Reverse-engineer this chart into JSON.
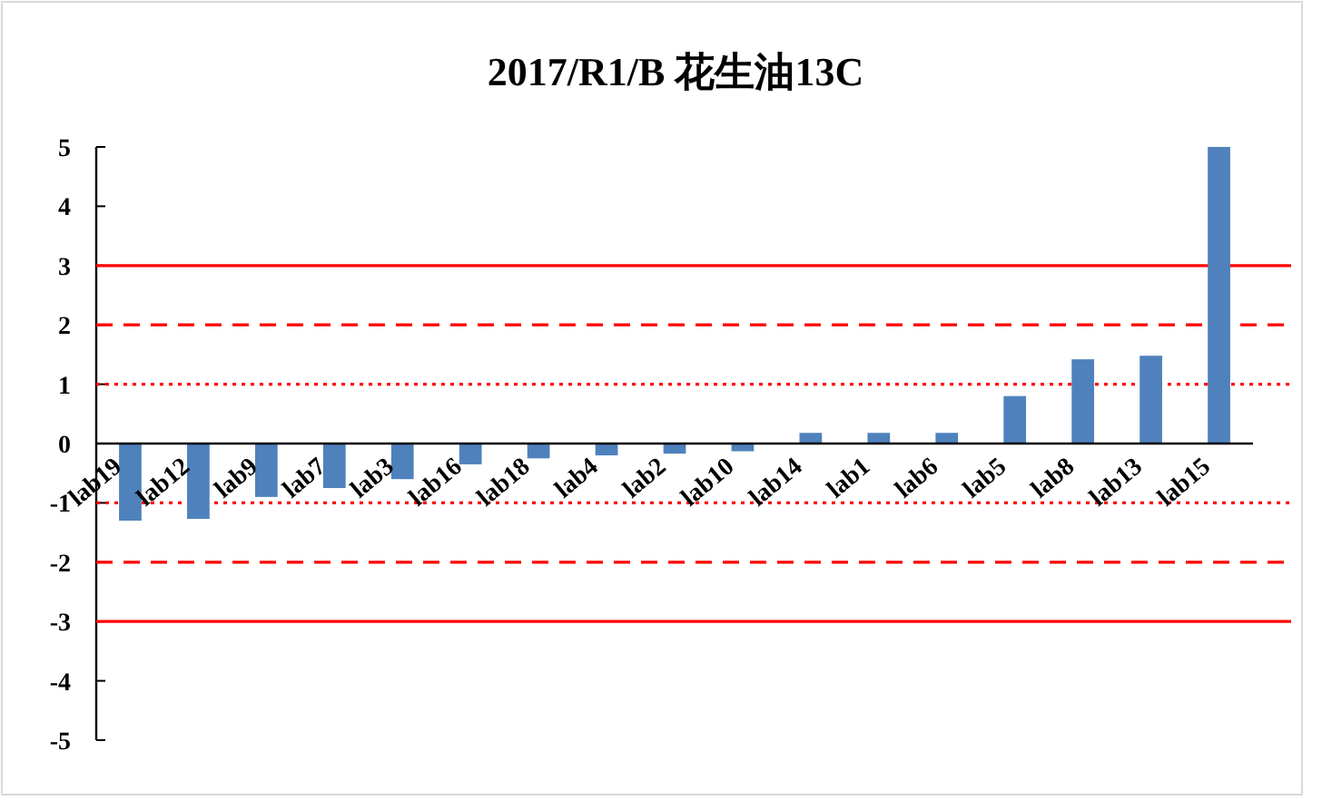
{
  "chart_data": {
    "type": "bar",
    "title": "2017/R1/B  花生油13C",
    "categories": [
      "lab19",
      "lab12",
      "lab9",
      "lab7",
      "lab3",
      "lab16",
      "lab18",
      "lab4",
      "lab2",
      "lab10",
      "lab14",
      "lab1",
      "lab6",
      "lab5",
      "lab8",
      "lab13",
      "lab15"
    ],
    "values": [
      -1.3,
      -1.27,
      -0.9,
      -0.75,
      -0.6,
      -0.35,
      -0.25,
      -0.2,
      -0.17,
      -0.13,
      0.18,
      0.18,
      0.18,
      0.8,
      1.42,
      1.48,
      5.0
    ],
    "color": "#4f81bd",
    "ylim": [
      -5,
      5
    ],
    "yticks": [
      -5,
      -4,
      -3,
      -2,
      -1,
      0,
      1,
      2,
      3,
      4,
      5
    ],
    "ref_lines": [
      {
        "axis": "y",
        "value": 3,
        "color": "#ff0000",
        "line_style": "solid"
      },
      {
        "axis": "y",
        "value": 2,
        "color": "#ff0000",
        "line_style": "dashed"
      },
      {
        "axis": "y",
        "value": 1,
        "color": "#ff0000",
        "line_style": "dotted"
      },
      {
        "axis": "y",
        "value": -1,
        "color": "#ff0000",
        "line_style": "dotted"
      },
      {
        "axis": "y",
        "value": -2,
        "color": "#ff0000",
        "line_style": "dashed"
      },
      {
        "axis": "y",
        "value": -3,
        "color": "#ff0000",
        "line_style": "solid"
      }
    ],
    "grid": false
  }
}
